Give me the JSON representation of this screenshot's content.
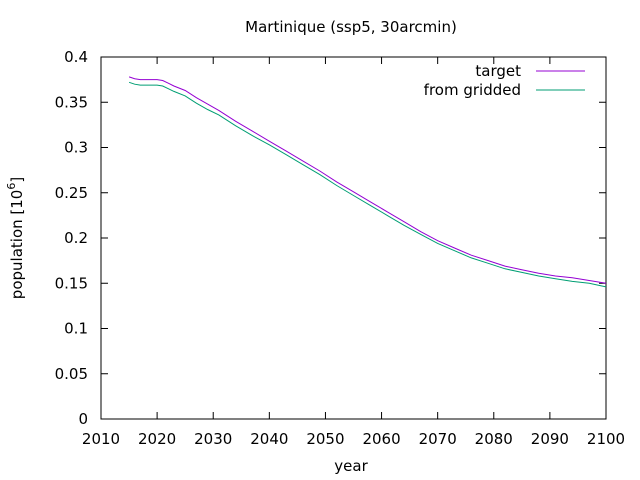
{
  "chart_data": {
    "type": "line",
    "title": "Martinique (ssp5, 30arcmin)",
    "xlabel": "year",
    "ylabel": "population [10",
    "ylabel_sup": "6",
    "ylabel_close": "]",
    "xlim": [
      2010,
      2100
    ],
    "ylim": [
      0,
      0.4
    ],
    "x_ticks": [
      "2010",
      "2020",
      "2030",
      "2040",
      "2050",
      "2060",
      "2070",
      "2080",
      "2090",
      "2100"
    ],
    "y_ticks": [
      "0",
      "0.05",
      "0.1",
      "0.15",
      "0.2",
      "0.25",
      "0.3",
      "0.35",
      "0.4"
    ],
    "grid": false,
    "legend_position": "top-right",
    "series": [
      {
        "name": "target",
        "color": "#9400d3",
        "x": [
          2015,
          2016,
          2017,
          2018,
          2019,
          2020,
          2021,
          2022,
          2023,
          2025,
          2027,
          2029,
          2031,
          2034,
          2037,
          2040,
          2043,
          2046,
          2049,
          2052,
          2055,
          2058,
          2061,
          2064,
          2067,
          2070,
          2073,
          2076,
          2079,
          2082,
          2085,
          2088,
          2091,
          2094,
          2097,
          2100
        ],
        "values": [
          0.378,
          0.376,
          0.375,
          0.375,
          0.375,
          0.375,
          0.374,
          0.371,
          0.368,
          0.363,
          0.355,
          0.348,
          0.341,
          0.329,
          0.318,
          0.307,
          0.296,
          0.285,
          0.274,
          0.262,
          0.251,
          0.24,
          0.229,
          0.218,
          0.207,
          0.197,
          0.189,
          0.181,
          0.175,
          0.169,
          0.165,
          0.161,
          0.158,
          0.156,
          0.153,
          0.15
        ]
      },
      {
        "name": "from gridded",
        "color": "#009e73",
        "x": [
          2015,
          2016,
          2017,
          2018,
          2019,
          2020,
          2021,
          2022,
          2023,
          2025,
          2027,
          2029,
          2031,
          2034,
          2037,
          2040,
          2043,
          2046,
          2049,
          2052,
          2055,
          2058,
          2061,
          2064,
          2067,
          2070,
          2073,
          2076,
          2079,
          2082,
          2085,
          2088,
          2091,
          2094,
          2097,
          2100
        ],
        "values": [
          0.372,
          0.37,
          0.369,
          0.369,
          0.369,
          0.369,
          0.368,
          0.365,
          0.362,
          0.357,
          0.349,
          0.342,
          0.336,
          0.324,
          0.313,
          0.303,
          0.292,
          0.281,
          0.27,
          0.258,
          0.247,
          0.236,
          0.225,
          0.214,
          0.204,
          0.194,
          0.186,
          0.178,
          0.172,
          0.166,
          0.162,
          0.158,
          0.155,
          0.152,
          0.15,
          0.146
        ]
      }
    ]
  }
}
